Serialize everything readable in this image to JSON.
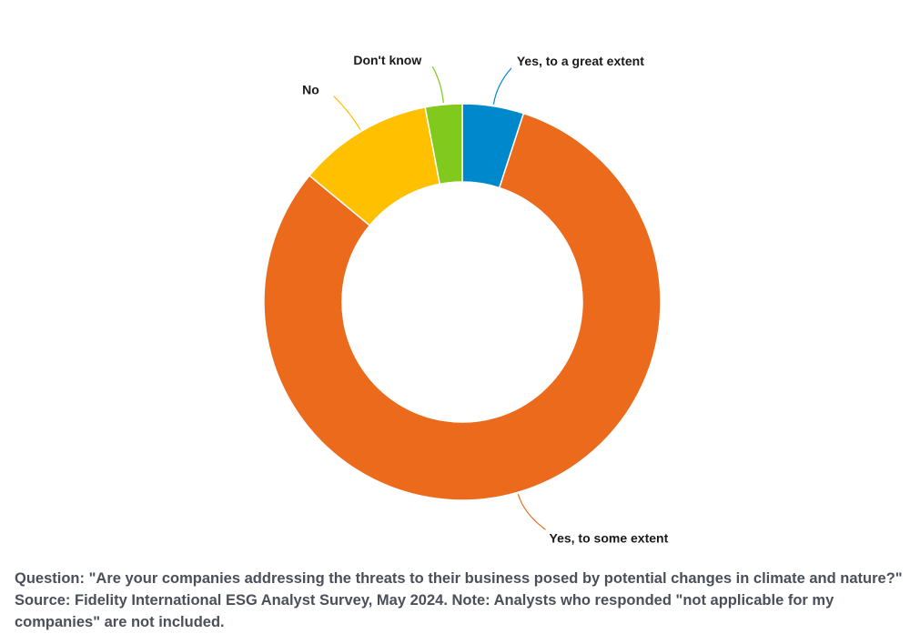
{
  "chart_data": {
    "type": "pie",
    "donut": true,
    "categories": [
      "Yes, to a great extent",
      "Yes, to some extent",
      "No",
      "Don't know"
    ],
    "values": [
      5,
      81,
      11,
      3
    ],
    "colors": [
      "#0088CC",
      "#EB6A1C",
      "#FFC000",
      "#82C91E"
    ],
    "title": "",
    "legend": "none (slice labels)"
  },
  "caption": "Question: \"Are your companies addressing the threats to their business posed by potential changes in climate and nature?\" Source: Fidelity International ESG Analyst Survey, May 2024. Note: Analysts who responded \"not applicable for my companies\" are not included."
}
